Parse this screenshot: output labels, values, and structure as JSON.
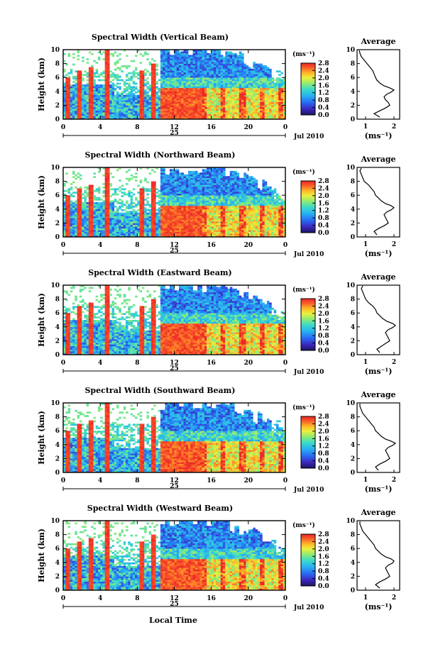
{
  "figure": {
    "xlabel": "Local Time",
    "date_label": "Jul 2010",
    "day_label": "25",
    "colorbar_unit": "(ms⁻¹)",
    "colorbar_ticks": [
      "0.0",
      "0.4",
      "0.8",
      "1.2",
      "1.6",
      "2.0",
      "2.4",
      "2.8"
    ],
    "avg_title": "Average",
    "avg_unit": "(ms⁻¹)"
  },
  "chart_data": [
    {
      "type": "heatmap",
      "title": "Spectral Width (Vertical Beam)",
      "ylabel": "Height (km)",
      "xlim": [
        0,
        24
      ],
      "ylim": [
        0,
        10
      ],
      "x_ticks": [
        "0",
        "4",
        "8",
        "12",
        "16",
        "20",
        "0"
      ],
      "y_ticks": [
        "0",
        "2",
        "4",
        "6",
        "8",
        "10"
      ],
      "color_range": [
        0.0,
        2.8
      ],
      "profile": {
        "title": "Average",
        "xlim": [
          0.7,
          2.2
        ],
        "x_ticks": [
          "1",
          "2"
        ],
        "height_km": [
          0.3,
          0.8,
          1.2,
          1.6,
          2.0,
          2.4,
          2.8,
          3.2,
          3.6,
          3.9,
          4.2,
          4.5,
          4.8,
          5.2,
          5.6,
          6.0,
          6.5,
          7.0,
          7.5,
          8.0,
          8.5,
          9.0,
          9.5,
          9.9
        ],
        "width_ms": [
          1.5,
          1.3,
          1.5,
          1.7,
          1.85,
          1.8,
          1.7,
          1.65,
          1.75,
          1.9,
          2.0,
          1.85,
          1.65,
          1.5,
          1.4,
          1.35,
          1.3,
          1.25,
          1.15,
          1.05,
          0.95,
          0.85,
          0.8,
          0.78
        ]
      }
    },
    {
      "type": "heatmap",
      "title": "Spectral Width (Northward Beam)",
      "ylabel": "Height (km)",
      "xlim": [
        0,
        24
      ],
      "ylim": [
        0,
        10
      ],
      "x_ticks": [
        "0",
        "4",
        "8",
        "12",
        "16",
        "20",
        "0"
      ],
      "y_ticks": [
        "0",
        "2",
        "4",
        "6",
        "8",
        "10"
      ],
      "color_range": [
        0.0,
        2.8
      ],
      "profile": {
        "title": "Average",
        "xlim": [
          0.7,
          2.2
        ],
        "x_ticks": [
          "1",
          "2"
        ],
        "height_km": [
          0.3,
          0.8,
          1.2,
          1.6,
          2.0,
          2.4,
          2.8,
          3.2,
          3.6,
          3.9,
          4.2,
          4.5,
          4.8,
          5.2,
          5.6,
          6.0,
          6.5,
          7.0,
          7.5,
          8.0,
          8.5,
          9.0,
          9.5,
          9.9
        ],
        "width_ms": [
          1.4,
          1.3,
          1.45,
          1.65,
          1.8,
          1.75,
          1.7,
          1.65,
          1.75,
          1.9,
          2.0,
          1.9,
          1.7,
          1.55,
          1.45,
          1.35,
          1.3,
          1.2,
          1.1,
          0.95,
          0.9,
          0.85,
          0.8,
          0.85
        ]
      }
    },
    {
      "type": "heatmap",
      "title": "Spectral Width (Eastward Beam)",
      "ylabel": "Height (km)",
      "xlim": [
        0,
        24
      ],
      "ylim": [
        0,
        10
      ],
      "x_ticks": [
        "0",
        "4",
        "8",
        "12",
        "16",
        "20",
        "0"
      ],
      "y_ticks": [
        "0",
        "2",
        "4",
        "6",
        "8",
        "10"
      ],
      "color_range": [
        0.0,
        2.8
      ],
      "profile": {
        "title": "Average",
        "xlim": [
          0.7,
          2.2
        ],
        "x_ticks": [
          "1",
          "2"
        ],
        "height_km": [
          0.3,
          0.8,
          1.2,
          1.6,
          2.0,
          2.4,
          2.8,
          3.2,
          3.6,
          3.9,
          4.2,
          4.5,
          4.8,
          5.2,
          5.6,
          6.0,
          6.5,
          7.0,
          7.5,
          8.0,
          8.5,
          9.0,
          9.5,
          9.9
        ],
        "width_ms": [
          1.5,
          1.4,
          1.55,
          1.7,
          1.85,
          1.8,
          1.75,
          1.7,
          1.8,
          1.95,
          2.05,
          1.95,
          1.75,
          1.6,
          1.5,
          1.4,
          1.35,
          1.25,
          1.1,
          1.0,
          0.95,
          0.9,
          0.85,
          0.9
        ]
      }
    },
    {
      "type": "heatmap",
      "title": "Spectral Width (Southward Beam)",
      "ylabel": "Height (km)",
      "xlim": [
        0,
        24
      ],
      "ylim": [
        0,
        10
      ],
      "x_ticks": [
        "0",
        "4",
        "8",
        "12",
        "16",
        "20",
        "0"
      ],
      "y_ticks": [
        "0",
        "2",
        "4",
        "6",
        "8",
        "10"
      ],
      "color_range": [
        0.0,
        2.8
      ],
      "profile": {
        "title": "Average",
        "xlim": [
          0.7,
          2.2
        ],
        "x_ticks": [
          "1",
          "2"
        ],
        "height_km": [
          0.3,
          0.8,
          1.2,
          1.6,
          2.0,
          2.4,
          2.8,
          3.2,
          3.6,
          3.9,
          4.2,
          4.5,
          4.8,
          5.2,
          5.6,
          6.0,
          6.5,
          7.0,
          7.5,
          8.0,
          8.5,
          9.0,
          9.5,
          9.9
        ],
        "width_ms": [
          1.45,
          1.35,
          1.5,
          1.7,
          1.85,
          1.8,
          1.75,
          1.7,
          1.8,
          1.95,
          2.05,
          1.9,
          1.7,
          1.55,
          1.45,
          1.35,
          1.3,
          1.2,
          1.1,
          1.0,
          0.9,
          0.85,
          0.8,
          0.8
        ]
      }
    },
    {
      "type": "heatmap",
      "title": "Spectral Width (Westward Beam)",
      "ylabel": "Height (km)",
      "xlim": [
        0,
        24
      ],
      "ylim": [
        0,
        10
      ],
      "x_ticks": [
        "0",
        "4",
        "8",
        "12",
        "16",
        "20",
        "0"
      ],
      "y_ticks": [
        "0",
        "2",
        "4",
        "6",
        "8",
        "10"
      ],
      "color_range": [
        0.0,
        2.8
      ],
      "profile": {
        "title": "Average",
        "xlim": [
          0.7,
          2.2
        ],
        "x_ticks": [
          "1",
          "2"
        ],
        "height_km": [
          0.3,
          0.8,
          1.2,
          1.6,
          2.0,
          2.4,
          2.8,
          3.2,
          3.6,
          3.9,
          4.2,
          4.5,
          4.8,
          5.2,
          5.6,
          6.0,
          6.5,
          7.0,
          7.5,
          8.0,
          8.5,
          9.0,
          9.5,
          9.9
        ],
        "width_ms": [
          1.5,
          1.35,
          1.5,
          1.7,
          1.85,
          1.8,
          1.75,
          1.7,
          1.8,
          1.95,
          2.0,
          1.9,
          1.7,
          1.55,
          1.45,
          1.35,
          1.3,
          1.2,
          1.1,
          1.0,
          0.9,
          0.85,
          0.8,
          0.8
        ]
      }
    }
  ]
}
